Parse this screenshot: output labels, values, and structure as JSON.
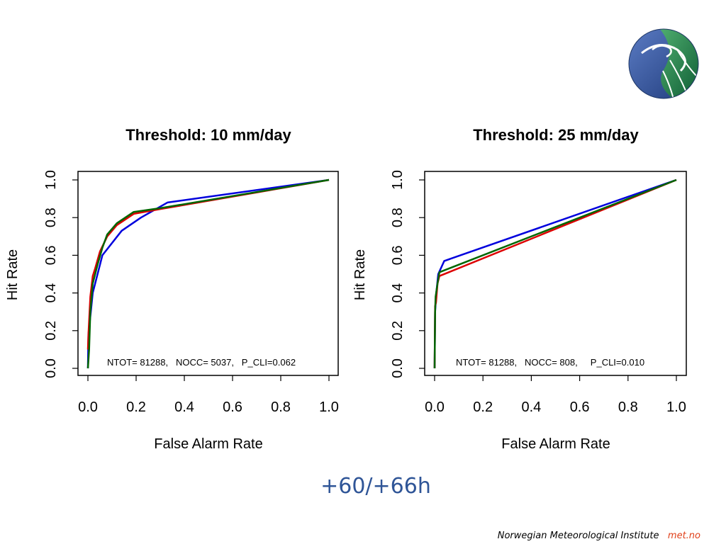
{
  "logo": {
    "icon": "met-no-globe-logo",
    "colors": [
      "#2a4a8c",
      "#1e7a4c",
      "#ffffff"
    ]
  },
  "subtitle": "+60/+66h",
  "footer": {
    "institute": "Norwegian Meteorological Institute",
    "brand": "met.no",
    "brand_color": "#e0401a"
  },
  "chart_data": [
    {
      "type": "line",
      "title": "Threshold: 10 mm/day",
      "xlabel": "False Alarm Rate",
      "ylabel": "Hit Rate",
      "xlim": [
        0,
        1
      ],
      "ylim": [
        0,
        1
      ],
      "xticks": [
        "0.0",
        "0.2",
        "0.4",
        "0.6",
        "0.8",
        "1.0"
      ],
      "yticks": [
        "0.0",
        "0.2",
        "0.4",
        "0.6",
        "0.8",
        "1.0"
      ],
      "annotation": "NTOT= 81288,   NOCC= 5037,   P_CLI=0.062",
      "series": [
        {
          "color": "#0000dd",
          "points": [
            [
              0,
              0
            ],
            [
              0.002,
              0.18
            ],
            [
              0.012,
              0.3
            ],
            [
              0.02,
              0.4
            ],
            [
              0.04,
              0.5
            ],
            [
              0.06,
              0.6
            ],
            [
              0.14,
              0.73
            ],
            [
              0.22,
              0.8
            ],
            [
              0.33,
              0.88
            ],
            [
              1,
              1
            ]
          ]
        },
        {
          "color": "#dd0000",
          "points": [
            [
              0,
              0.1
            ],
            [
              0.003,
              0.2
            ],
            [
              0.01,
              0.38
            ],
            [
              0.02,
              0.49
            ],
            [
              0.03,
              0.53
            ],
            [
              0.05,
              0.62
            ],
            [
              0.08,
              0.7
            ],
            [
              0.12,
              0.76
            ],
            [
              0.19,
              0.82
            ],
            [
              0.3,
              0.845
            ],
            [
              1,
              1
            ]
          ]
        },
        {
          "color": "#006600",
          "points": [
            [
              0,
              0
            ],
            [
              0.005,
              0.1
            ],
            [
              0.01,
              0.3
            ],
            [
              0.02,
              0.45
            ],
            [
              0.04,
              0.55
            ],
            [
              0.06,
              0.64
            ],
            [
              0.08,
              0.71
            ],
            [
              0.12,
              0.77
            ],
            [
              0.19,
              0.83
            ],
            [
              0.3,
              0.85
            ],
            [
              1,
              1
            ]
          ]
        }
      ]
    },
    {
      "type": "line",
      "title": "Threshold: 25 mm/day",
      "xlabel": "False Alarm Rate",
      "ylabel": "Hit Rate",
      "xlim": [
        0,
        1
      ],
      "ylim": [
        0,
        1
      ],
      "xticks": [
        "0.0",
        "0.2",
        "0.4",
        "0.6",
        "0.8",
        "1.0"
      ],
      "yticks": [
        "0.0",
        "0.2",
        "0.4",
        "0.6",
        "0.8",
        "1.0"
      ],
      "annotation": "NTOT= 81288,   NOCC= 808,     P_CLI=0.010",
      "series": [
        {
          "color": "#0000dd",
          "points": [
            [
              0,
              0
            ],
            [
              0.002,
              0.3
            ],
            [
              0.007,
              0.4
            ],
            [
              0.015,
              0.5
            ],
            [
              0.04,
              0.57
            ],
            [
              1,
              1
            ]
          ]
        },
        {
          "color": "#dd0000",
          "points": [
            [
              0,
              0
            ],
            [
              0.002,
              0.33
            ],
            [
              0.006,
              0.35
            ],
            [
              0.012,
              0.45
            ],
            [
              0.02,
              0.49
            ],
            [
              1,
              1
            ]
          ]
        },
        {
          "color": "#006600",
          "points": [
            [
              0,
              0
            ],
            [
              0.002,
              0.3
            ],
            [
              0.004,
              0.38
            ],
            [
              0.012,
              0.45
            ],
            [
              0.02,
              0.51
            ],
            [
              1,
              1
            ]
          ]
        }
      ]
    }
  ]
}
